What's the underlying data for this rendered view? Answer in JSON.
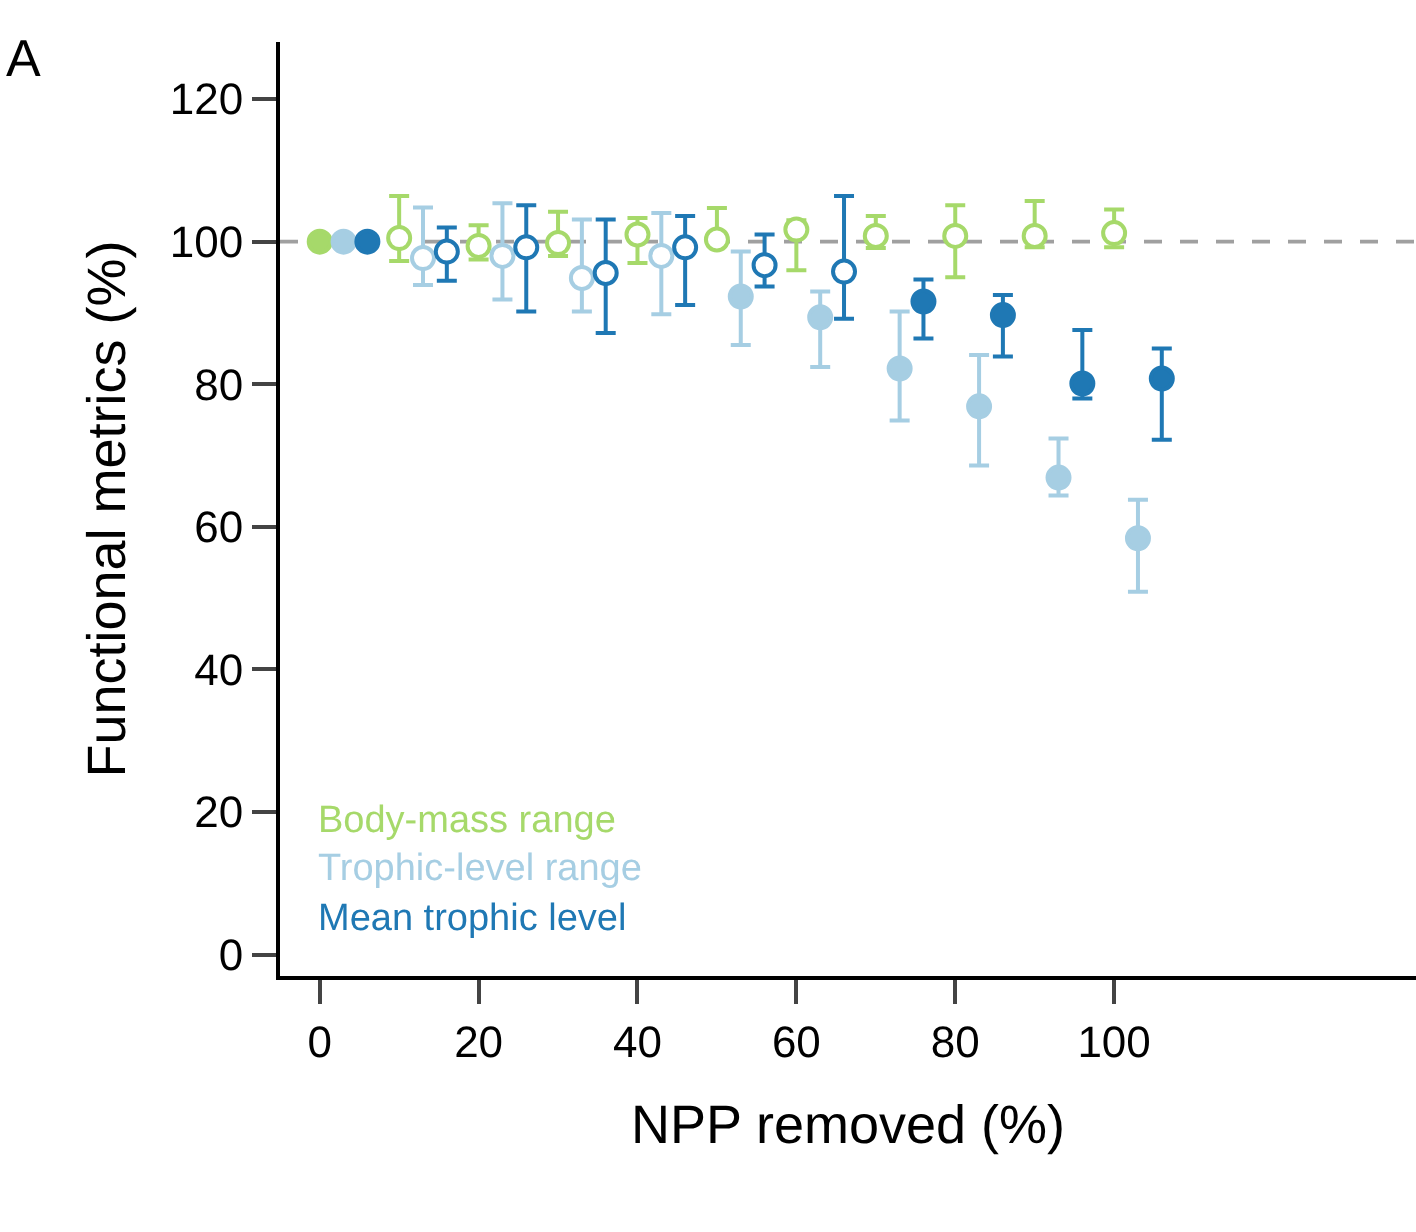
{
  "chart_data": {
    "type": "scatter",
    "xlabel": "NPP removed (%)",
    "ylabel": "Functional metrics (%)",
    "annotations": [
      "A"
    ],
    "xlim": [
      -5,
      138
    ],
    "xticks": [
      0,
      20,
      40,
      60,
      80,
      100
    ],
    "ylim": [
      -3,
      128
    ],
    "yticks": [
      0,
      20,
      40,
      60,
      80,
      100,
      120
    ],
    "grid": false,
    "legend": "bottom left",
    "marker": "circle",
    "ref_lines": [
      {
        "axis": "y",
        "value": 100,
        "label": null,
        "color": "#a0a0a0",
        "line_style": "dashed"
      }
    ],
    "series": [
      {
        "name": "Body-mass range",
        "color": "#a6d96a",
        "x": [
          0,
          10,
          20,
          30,
          40,
          50,
          60,
          70,
          80,
          90,
          100
        ],
        "values": [
          100,
          100.5,
          99.4,
          99.8,
          101,
          100.3,
          101.7,
          100.8,
          100.8,
          100.8,
          101.2
        ],
        "colors": [
          "#a6d96a",
          "#ffffff",
          "#ffffff",
          "#ffffff",
          "#ffffff",
          "#ffffff",
          "#ffffff",
          "#ffffff",
          "#ffffff",
          "#ffffff",
          "#ffffff"
        ],
        "errors": [
          null,
          [
            97.3,
            106.4
          ],
          [
            97.5,
            102.3
          ],
          [
            98,
            104.2
          ],
          [
            97,
            103.3
          ],
          [
            99.4,
            104.7
          ],
          [
            96,
            103
          ],
          [
            99.1,
            103.6
          ],
          [
            95,
            105.1
          ],
          [
            99.2,
            105.7
          ],
          [
            99.2,
            104.5
          ]
        ]
      },
      {
        "name": "Trophic-level range",
        "color": "#a6cee3",
        "x": [
          3,
          13,
          23,
          33,
          43,
          53,
          63,
          73,
          83,
          93,
          103
        ],
        "values": [
          100,
          97.7,
          98,
          94.9,
          98,
          92.3,
          89.4,
          82.2,
          76.9,
          66.9,
          58.4
        ],
        "colors": [
          "#a6cee3",
          "#ffffff",
          "#ffffff",
          "#ffffff",
          "#ffffff",
          "#a6cee3",
          "#a6cee3",
          "#a6cee3",
          "#a6cee3",
          "#a6cee3",
          "#a6cee3"
        ],
        "errors": [
          null,
          [
            93.9,
            104.8
          ],
          [
            91.9,
            105.4
          ],
          [
            90.2,
            103.1
          ],
          [
            89.8,
            104
          ],
          [
            85.5,
            98.6
          ],
          [
            82.4,
            93
          ],
          [
            74.9,
            90.2
          ],
          [
            68.6,
            84.1
          ],
          [
            64.4,
            72.4
          ],
          [
            50.9,
            63.8
          ]
        ]
      },
      {
        "name": "Mean trophic level",
        "color": "#1f78b4",
        "x": [
          6,
          16,
          26,
          36,
          46,
          56,
          66,
          76,
          86,
          96,
          106
        ],
        "values": [
          100,
          98.6,
          99.2,
          95.6,
          99.2,
          96.7,
          95.8,
          91.6,
          89.7,
          80.1,
          80.8
        ],
        "colors": [
          "#1f78b4",
          "#ffffff",
          "#ffffff",
          "#ffffff",
          "#ffffff",
          "#ffffff",
          "#ffffff",
          "#1f78b4",
          "#1f78b4",
          "#1f78b4",
          "#1f78b4"
        ],
        "errors": [
          null,
          [
            94.5,
            102
          ],
          [
            90.2,
            105.1
          ],
          [
            87.2,
            103.1
          ],
          [
            91.1,
            103.6
          ],
          [
            93.7,
            101
          ],
          [
            89.2,
            106.4
          ],
          [
            86.4,
            94.7
          ],
          [
            83.9,
            92.5
          ],
          [
            78,
            87.6
          ],
          [
            72.2,
            85
          ]
        ]
      }
    ]
  }
}
